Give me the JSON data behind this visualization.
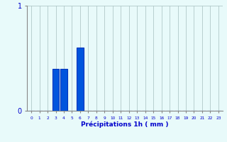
{
  "hours": [
    0,
    1,
    2,
    3,
    4,
    5,
    6,
    7,
    8,
    9,
    10,
    11,
    12,
    13,
    14,
    15,
    16,
    17,
    18,
    19,
    20,
    21,
    22,
    23
  ],
  "values": [
    0,
    0,
    0,
    0.4,
    0.4,
    0,
    0.6,
    0,
    0,
    0,
    0,
    0,
    0,
    0,
    0,
    0,
    0,
    0,
    0,
    0,
    0,
    0,
    0,
    0
  ],
  "bar_color": "#0055dd",
  "bar_edge_color": "#0033bb",
  "background_color": "#e8fafa",
  "grid_color_v": "#b0c8c8",
  "grid_color_h": "#b0c8c8",
  "xlabel": "Précipitations 1h ( mm )",
  "xlabel_color": "#0000cc",
  "tick_color": "#0000cc",
  "axis_color": "#888888",
  "ylim": [
    0,
    1.0
  ],
  "yticks": [
    0,
    1
  ],
  "bar_width": 0.8
}
